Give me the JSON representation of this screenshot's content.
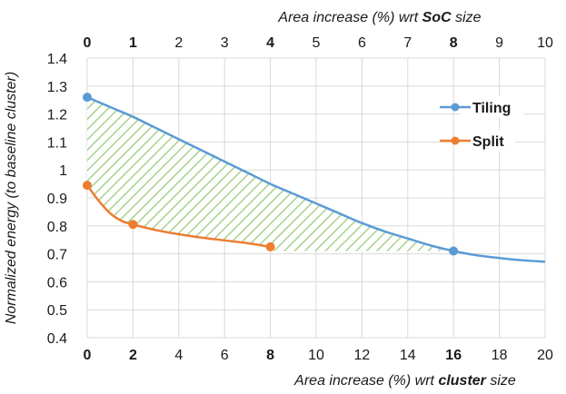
{
  "chart_data": {
    "type": "line",
    "title": "",
    "top_xlabel_prefix": "Area increase (%) wrt ",
    "top_xlabel_bold": "SoC",
    "top_xlabel_suffix": " size",
    "bottom_xlabel_prefix": "Area increase (%) wrt ",
    "bottom_xlabel_bold": "cluster",
    "bottom_xlabel_suffix": " size",
    "ylabel": "Normalized energy (to baseline cluster)",
    "xlim": [
      0,
      20
    ],
    "ylim": [
      0.4,
      1.4
    ],
    "grid": true,
    "legend_position": "right",
    "bottom_ticks": [
      {
        "value": 0,
        "label": "0",
        "bold": true
      },
      {
        "value": 2,
        "label": "2",
        "bold": true
      },
      {
        "value": 4,
        "label": "4",
        "bold": false
      },
      {
        "value": 6,
        "label": "6",
        "bold": false
      },
      {
        "value": 8,
        "label": "8",
        "bold": true
      },
      {
        "value": 10,
        "label": "10",
        "bold": false
      },
      {
        "value": 12,
        "label": "12",
        "bold": false
      },
      {
        "value": 14,
        "label": "14",
        "bold": false
      },
      {
        "value": 16,
        "label": "16",
        "bold": true
      },
      {
        "value": 18,
        "label": "18",
        "bold": false
      },
      {
        "value": 20,
        "label": "20",
        "bold": false
      }
    ],
    "top_ticks": [
      {
        "value": 0,
        "label": "0",
        "bold": true
      },
      {
        "value": 1,
        "label": "1",
        "bold": true
      },
      {
        "value": 2,
        "label": "2",
        "bold": false
      },
      {
        "value": 3,
        "label": "3",
        "bold": false
      },
      {
        "value": 4,
        "label": "4",
        "bold": true
      },
      {
        "value": 5,
        "label": "5",
        "bold": false
      },
      {
        "value": 6,
        "label": "6",
        "bold": false
      },
      {
        "value": 7,
        "label": "7",
        "bold": false
      },
      {
        "value": 8,
        "label": "8",
        "bold": true
      },
      {
        "value": 9,
        "label": "9",
        "bold": false
      },
      {
        "value": 10,
        "label": "10",
        "bold": false
      }
    ],
    "y_ticks": [
      "0.4",
      "0.5",
      "0.6",
      "0.7",
      "0.8",
      "0.9",
      "1",
      "1.1",
      "1.2",
      "1.3",
      "1.4"
    ],
    "series": [
      {
        "name": "Tiling",
        "color": "#5b9bd5",
        "x": [
          0,
          1,
          2,
          3,
          4,
          5,
          6,
          7,
          8,
          9,
          10,
          11,
          12,
          13,
          14,
          15,
          16,
          17,
          18,
          19,
          20
        ],
        "y": [
          1.26,
          1.225,
          1.19,
          1.15,
          1.11,
          1.07,
          1.03,
          0.99,
          0.95,
          0.915,
          0.88,
          0.845,
          0.81,
          0.78,
          0.755,
          0.73,
          0.71,
          0.695,
          0.685,
          0.677,
          0.672
        ],
        "markers": [
          {
            "x": 0,
            "y": 1.26
          },
          {
            "x": 16,
            "y": 0.71
          }
        ]
      },
      {
        "name": "Split",
        "color": "#ed7d31",
        "x": [
          0,
          0.5,
          1,
          1.5,
          2,
          3,
          4,
          5,
          6,
          7,
          8
        ],
        "y": [
          0.945,
          0.89,
          0.845,
          0.818,
          0.805,
          0.785,
          0.77,
          0.758,
          0.748,
          0.738,
          0.725
        ],
        "markers": [
          {
            "x": 0,
            "y": 0.945
          },
          {
            "x": 2,
            "y": 0.805
          },
          {
            "x": 8,
            "y": 0.725
          }
        ]
      }
    ],
    "shaded_region": {
      "description_color": "#a9d18e",
      "between": [
        "Tiling",
        "Split"
      ],
      "x_range": [
        0,
        16
      ],
      "floor_after_split": 0.71
    }
  }
}
